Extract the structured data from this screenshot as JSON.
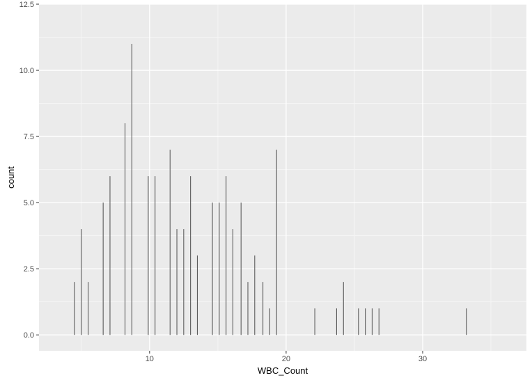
{
  "chart_data": {
    "type": "bar",
    "xlabel": "WBC_Count",
    "ylabel": "count",
    "xlim": [
      1.9,
      37.6
    ],
    "ylim": [
      -0.6,
      12.5
    ],
    "x_ticks": [
      10,
      20,
      30
    ],
    "x_tick_labels": [
      "10",
      "20",
      "30"
    ],
    "y_ticks": [
      0,
      2.5,
      5,
      7.5,
      10,
      12.5
    ],
    "y_tick_labels": [
      "0.0",
      "2.5",
      "5.0",
      "7.5",
      "10.0",
      "12.5"
    ],
    "grid": true,
    "x": [
      4.5,
      5.0,
      5.5,
      6.6,
      7.1,
      8.2,
      8.7,
      9.9,
      10.4,
      11.5,
      12.0,
      12.5,
      13.0,
      13.5,
      14.6,
      15.1,
      15.6,
      16.1,
      16.7,
      17.2,
      17.7,
      18.3,
      18.8,
      19.3,
      22.1,
      23.7,
      24.2,
      25.3,
      25.8,
      26.3,
      26.8,
      33.2
    ],
    "values": [
      2,
      4,
      2,
      5,
      6,
      8,
      11,
      6,
      6,
      7,
      4,
      4,
      6,
      3,
      5,
      5,
      6,
      4,
      5,
      2,
      3,
      2,
      1,
      7,
      1,
      1,
      2,
      1,
      1,
      1,
      1,
      1
    ],
    "colors": {
      "panel": "#ebebeb",
      "grid_major": "#ffffff",
      "grid_minor": "#f5f5f5",
      "bar": "#595959",
      "tick": "#333333"
    }
  }
}
